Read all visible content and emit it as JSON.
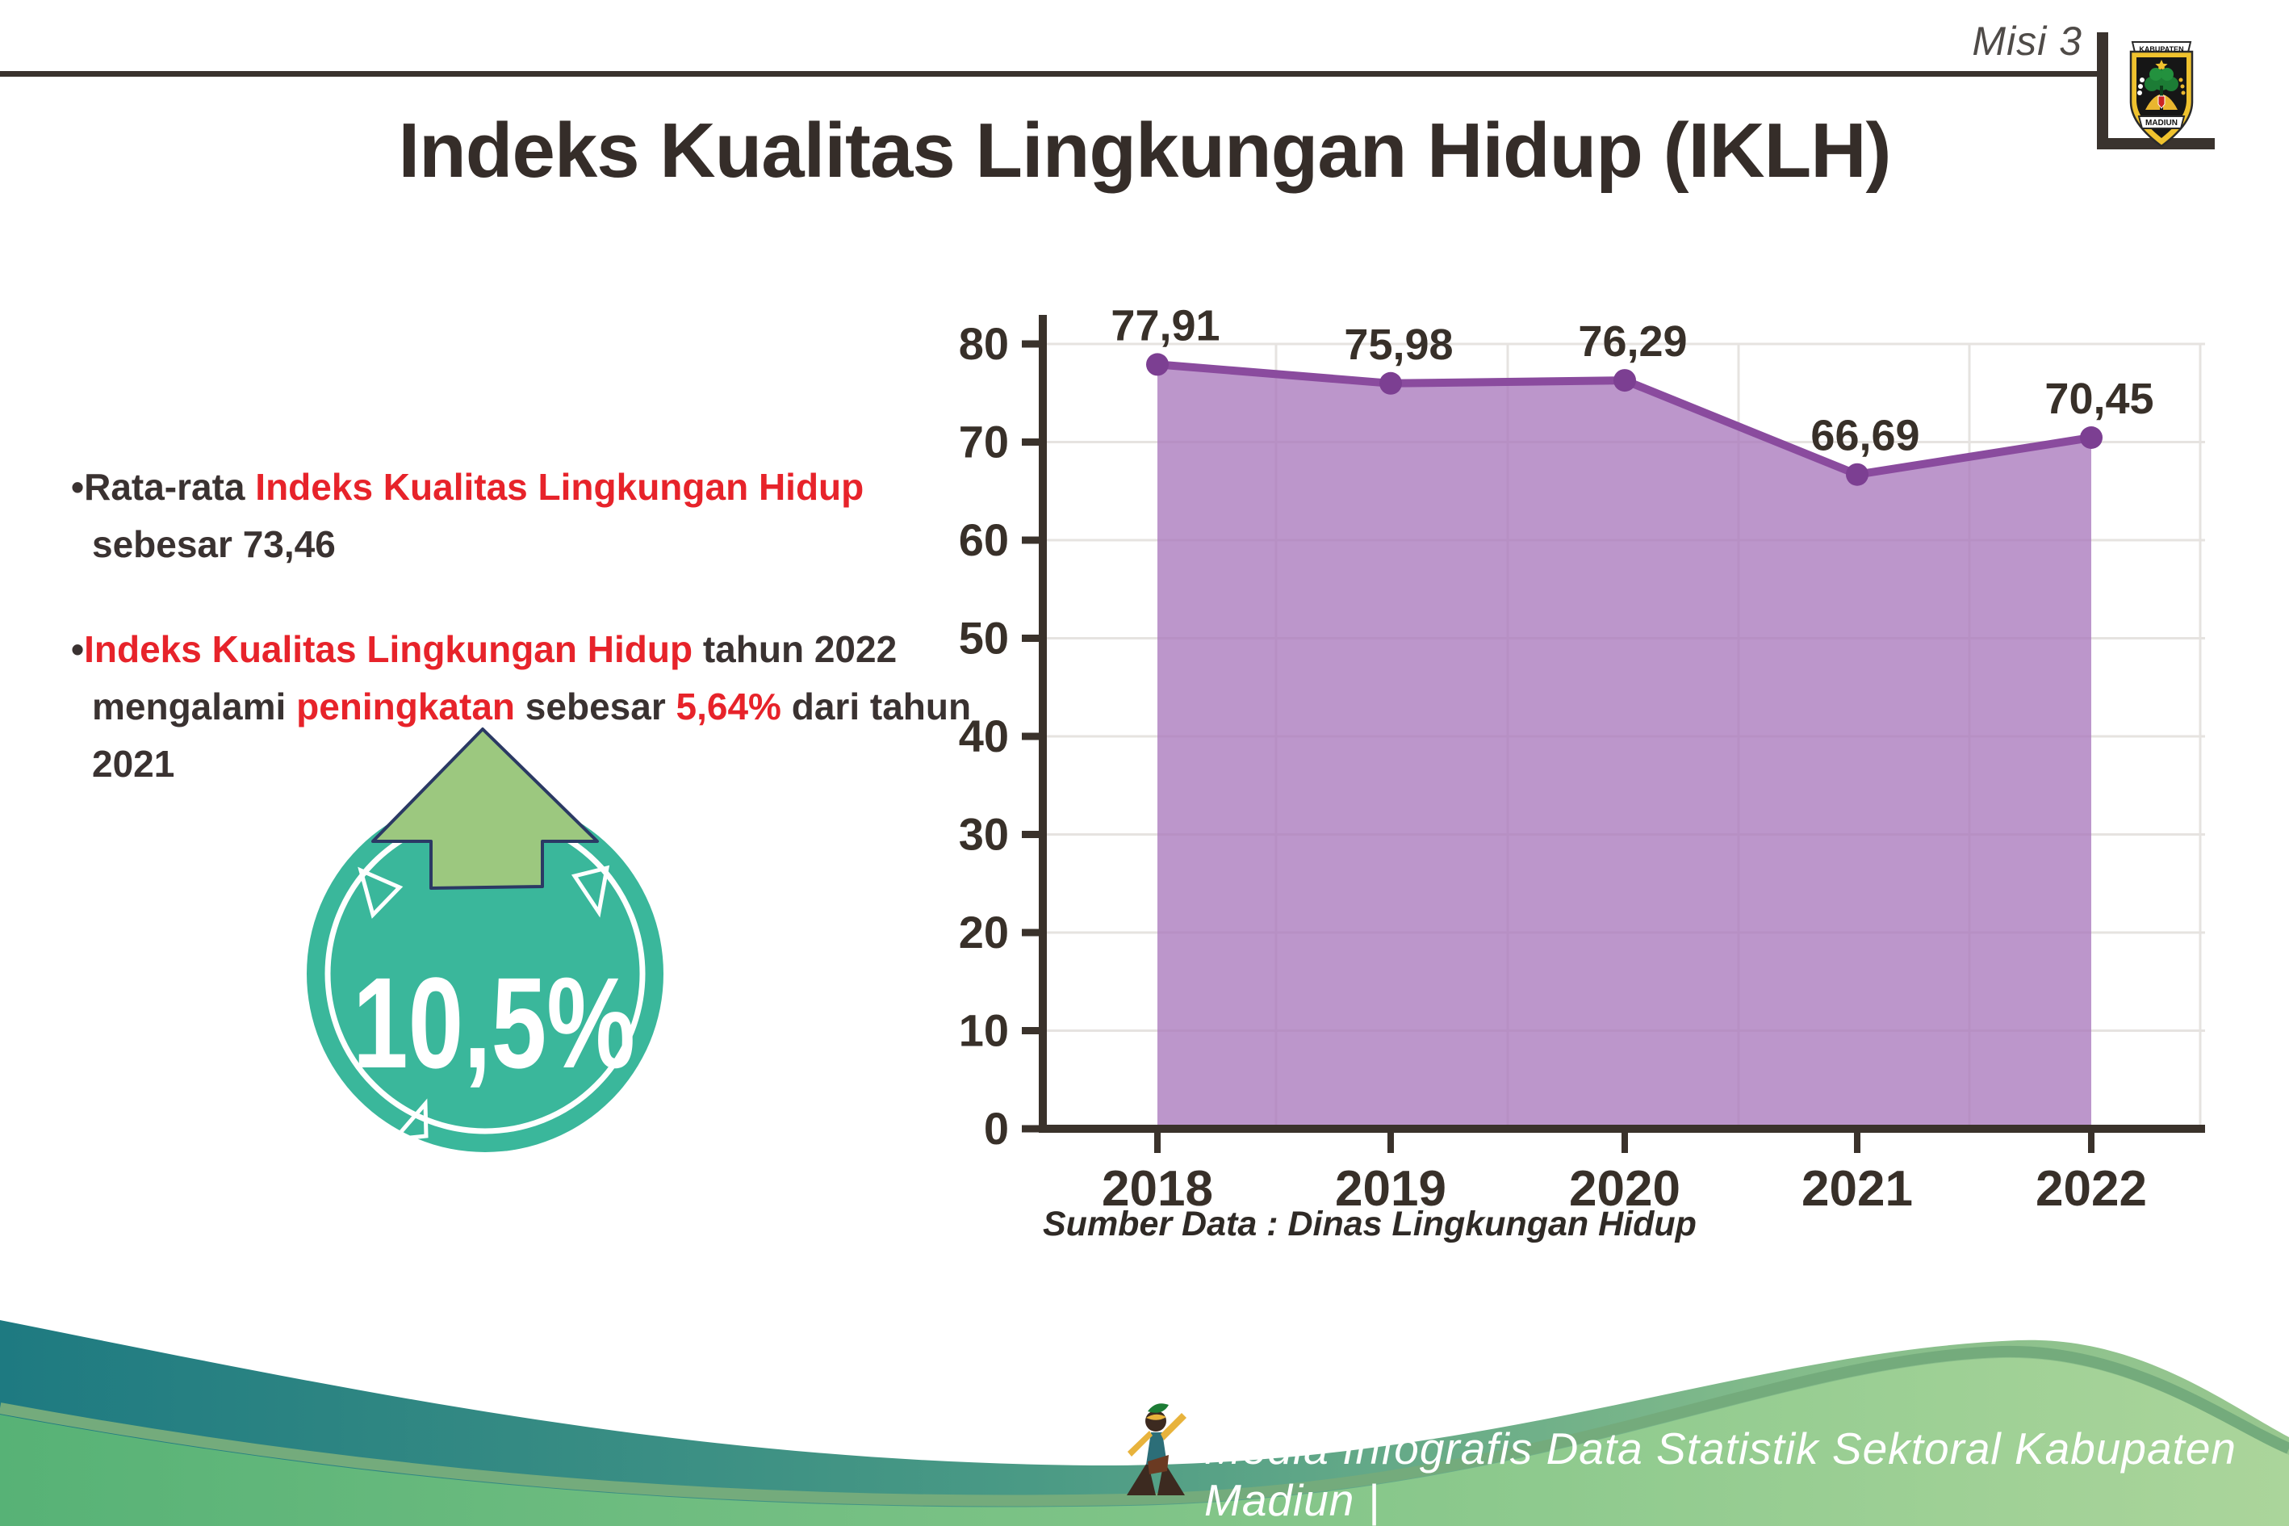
{
  "header": {
    "misi": "Misi 3",
    "logo_top": "KABUPATEN",
    "logo_bottom": "MADIUN"
  },
  "title": "Indeks Kualitas Lingkungan Hidup (IKLH)",
  "bullets": {
    "b1": [
      {
        "t": "•Rata-rata ",
        "r": 0
      },
      {
        "t": "Indeks Kualitas Lingkungan Hidup",
        "r": 1
      },
      {
        "t": " sebesar 73,46",
        "r": 0
      }
    ],
    "b2": [
      {
        "t": "•",
        "r": 0
      },
      {
        "t": "Indeks Kualitas Lingkungan Hidup",
        "r": 1
      },
      {
        "t": " tahun 2022 mengalami ",
        "r": 0
      },
      {
        "t": "peningkatan",
        "r": 1
      },
      {
        "t": " sebesar ",
        "r": 0
      },
      {
        "t": "5,64%",
        "r": 1
      },
      {
        "t": " dari tahun 2021",
        "r": 0
      }
    ]
  },
  "badge": {
    "value": "10,5%"
  },
  "chart_data": {
    "type": "area",
    "categories": [
      "2018",
      "2019",
      "2020",
      "2021",
      "2022"
    ],
    "values": [
      77.91,
      75.98,
      76.29,
      66.69,
      70.45
    ],
    "point_labels": [
      "77,91",
      "75,98",
      "76,29",
      "66,69",
      "70,45"
    ],
    "title": "",
    "xlabel": "",
    "ylabel": "",
    "ylim": [
      0,
      80
    ],
    "ytick_step": 10,
    "grid": true,
    "legend": false,
    "line_color": "#8a4b9e",
    "marker_color": "#7c3f92",
    "fill_color": "rgba(169,121,188,0.78)",
    "axis_color": "#3a322b",
    "grid_color": "#e6e3e0",
    "label_color": "#383029"
  },
  "source": "Sumber Data : Dinas Lingkungan Hidup",
  "footer": {
    "text": "Media Infografis Data Statistik Sektoral Kabupaten Madiun |"
  },
  "colors": {
    "accent_red": "#e7232a",
    "text_dark": "#3a3231",
    "badge_teal": "#3ab79b",
    "arrow_green": "#9cc87f",
    "arrow_outline": "#2b3964",
    "footer_teal": "#22808477",
    "footer_green": "#6cbc80"
  }
}
